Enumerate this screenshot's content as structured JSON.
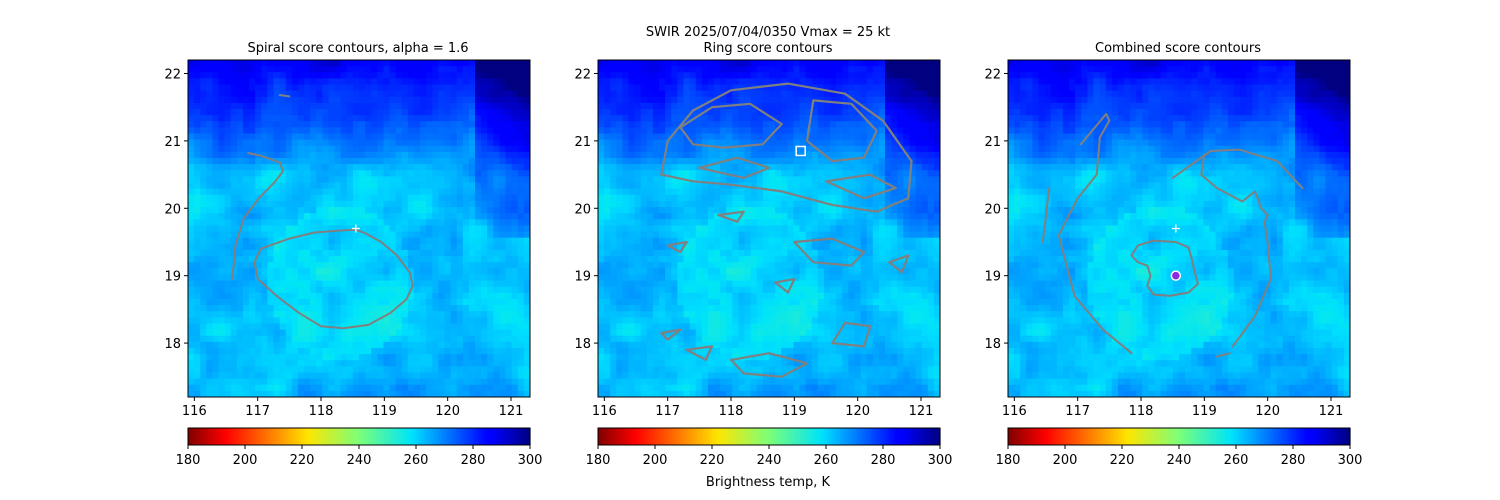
{
  "suptitle": {
    "line1": "SWIR  2025/07/04/0350    Vmax = 25 kt"
  },
  "colorbar_label": "Brightness temp, K",
  "colors": {
    "contour": "#808080",
    "marker": "#ffffff",
    "combined_center": "#8a2be2"
  },
  "chart_data": [
    {
      "type": "heatmap",
      "title": "Spiral score contours, alpha =  1.6",
      "xlim": [
        115.9,
        121.3
      ],
      "ylim": [
        17.2,
        22.2
      ],
      "xticks": [
        "116",
        "117",
        "118",
        "119",
        "120",
        "121"
      ],
      "yticks": [
        "18",
        "19",
        "20",
        "21",
        "22"
      ],
      "colorbar": {
        "min": 180,
        "max": 300,
        "ticks": [
          "180",
          "200",
          "220",
          "240",
          "260",
          "280",
          "300"
        ],
        "colormap": "jet_r"
      },
      "marker": {
        "type": "plus",
        "lon": 118.55,
        "lat": 19.7
      },
      "contours": [
        [
          [
            118.55,
            19.68
          ],
          [
            118.3,
            19.67
          ],
          [
            117.9,
            19.64
          ],
          [
            117.5,
            19.55
          ],
          [
            117.05,
            19.4
          ],
          [
            116.95,
            19.2
          ],
          [
            117.0,
            18.95
          ],
          [
            117.3,
            18.7
          ],
          [
            117.65,
            18.45
          ],
          [
            118.0,
            18.25
          ],
          [
            118.35,
            18.22
          ],
          [
            118.75,
            18.27
          ],
          [
            119.1,
            18.45
          ],
          [
            119.35,
            18.65
          ],
          [
            119.45,
            18.85
          ],
          [
            119.4,
            19.05
          ],
          [
            119.2,
            19.3
          ],
          [
            118.95,
            19.5
          ],
          [
            118.7,
            19.63
          ],
          [
            118.55,
            19.68
          ]
        ],
        [
          [
            116.6,
            18.95
          ],
          [
            116.65,
            19.45
          ],
          [
            116.78,
            19.85
          ],
          [
            117.02,
            20.15
          ],
          [
            117.28,
            20.4
          ],
          [
            117.4,
            20.55
          ],
          [
            117.35,
            20.68
          ],
          [
            117.05,
            20.78
          ],
          [
            116.85,
            20.82
          ]
        ],
        [
          [
            117.35,
            21.68
          ],
          [
            117.5,
            21.66
          ]
        ]
      ]
    },
    {
      "type": "heatmap",
      "title": "Ring score contours",
      "xlim": [
        115.9,
        121.3
      ],
      "ylim": [
        17.2,
        22.2
      ],
      "xticks": [
        "116",
        "117",
        "118",
        "119",
        "120",
        "121"
      ],
      "yticks": [
        "18",
        "19",
        "20",
        "21",
        "22"
      ],
      "colorbar": {
        "min": 180,
        "max": 300,
        "ticks": [
          "180",
          "200",
          "220",
          "240",
          "260",
          "280",
          "300"
        ],
        "colormap": "jet_r"
      },
      "marker": {
        "type": "square",
        "lon": 119.1,
        "lat": 20.85
      },
      "contours": [
        [
          [
            116.9,
            20.5
          ],
          [
            117.0,
            21.0
          ],
          [
            117.4,
            21.45
          ],
          [
            118.0,
            21.75
          ],
          [
            118.9,
            21.85
          ],
          [
            119.8,
            21.7
          ],
          [
            120.4,
            21.3
          ],
          [
            120.85,
            20.7
          ],
          [
            120.8,
            20.15
          ],
          [
            120.3,
            19.95
          ],
          [
            119.6,
            20.05
          ],
          [
            118.8,
            20.25
          ],
          [
            118.0,
            20.35
          ],
          [
            117.4,
            20.4
          ],
          [
            116.9,
            20.5
          ]
        ],
        [
          [
            117.2,
            21.2
          ],
          [
            117.7,
            21.5
          ],
          [
            118.3,
            21.55
          ],
          [
            118.8,
            21.25
          ],
          [
            118.5,
            20.95
          ],
          [
            117.9,
            20.9
          ],
          [
            117.4,
            20.95
          ],
          [
            117.2,
            21.2
          ]
        ],
        [
          [
            119.3,
            21.6
          ],
          [
            119.9,
            21.55
          ],
          [
            120.3,
            21.15
          ],
          [
            120.1,
            20.75
          ],
          [
            119.6,
            20.7
          ],
          [
            119.2,
            21.0
          ],
          [
            119.3,
            21.6
          ]
        ],
        [
          [
            117.5,
            20.6
          ],
          [
            118.1,
            20.75
          ],
          [
            118.6,
            20.6
          ],
          [
            118.2,
            20.45
          ],
          [
            117.5,
            20.6
          ]
        ],
        [
          [
            119.5,
            20.4
          ],
          [
            120.2,
            20.5
          ],
          [
            120.6,
            20.3
          ],
          [
            120.1,
            20.15
          ],
          [
            119.5,
            20.4
          ]
        ],
        [
          [
            119.0,
            19.5
          ],
          [
            119.6,
            19.55
          ],
          [
            120.1,
            19.35
          ],
          [
            119.9,
            19.15
          ],
          [
            119.3,
            19.2
          ],
          [
            119.0,
            19.5
          ]
        ],
        [
          [
            119.6,
            18.0
          ],
          [
            119.8,
            18.3
          ],
          [
            120.2,
            18.25
          ],
          [
            120.1,
            17.95
          ],
          [
            119.6,
            18.0
          ]
        ],
        [
          [
            118.0,
            17.75
          ],
          [
            118.6,
            17.85
          ],
          [
            119.2,
            17.7
          ],
          [
            118.8,
            17.5
          ],
          [
            118.2,
            17.55
          ],
          [
            118.0,
            17.75
          ]
        ],
        [
          [
            117.3,
            17.9
          ],
          [
            117.7,
            17.95
          ],
          [
            117.6,
            17.75
          ],
          [
            117.3,
            17.9
          ]
        ],
        [
          [
            116.9,
            18.15
          ],
          [
            117.2,
            18.2
          ],
          [
            117.0,
            18.05
          ],
          [
            116.9,
            18.15
          ]
        ],
        [
          [
            117.8,
            19.9
          ],
          [
            118.2,
            19.95
          ],
          [
            118.1,
            19.8
          ],
          [
            117.8,
            19.9
          ]
        ],
        [
          [
            117.0,
            19.45
          ],
          [
            117.3,
            19.5
          ],
          [
            117.2,
            19.35
          ],
          [
            117.0,
            19.45
          ]
        ],
        [
          [
            120.5,
            19.2
          ],
          [
            120.8,
            19.3
          ],
          [
            120.7,
            19.05
          ],
          [
            120.5,
            19.2
          ]
        ],
        [
          [
            118.7,
            18.9
          ],
          [
            119.0,
            18.95
          ],
          [
            118.9,
            18.75
          ],
          [
            118.7,
            18.9
          ]
        ]
      ]
    },
    {
      "type": "heatmap",
      "title": "Combined score contours",
      "xlim": [
        115.9,
        121.3
      ],
      "ylim": [
        17.2,
        22.2
      ],
      "xticks": [
        "116",
        "117",
        "118",
        "119",
        "120",
        "121"
      ],
      "yticks": [
        "18",
        "19",
        "20",
        "21",
        "22"
      ],
      "colorbar": {
        "min": 180,
        "max": 300,
        "ticks": [
          "180",
          "200",
          "220",
          "240",
          "260",
          "280",
          "300"
        ],
        "colormap": "jet_r"
      },
      "marker": {
        "type": "plus",
        "lon": 118.55,
        "lat": 19.7
      },
      "center": {
        "lon": 118.55,
        "lat": 19.0
      },
      "contours": [
        [
          [
            118.55,
            19.5
          ],
          [
            118.2,
            19.52
          ],
          [
            117.95,
            19.45
          ],
          [
            117.85,
            19.3
          ],
          [
            117.95,
            19.2
          ],
          [
            118.1,
            19.15
          ],
          [
            118.15,
            19.0
          ],
          [
            118.1,
            18.85
          ],
          [
            118.2,
            18.72
          ],
          [
            118.45,
            18.7
          ],
          [
            118.75,
            18.75
          ],
          [
            118.9,
            18.88
          ],
          [
            118.85,
            19.05
          ],
          [
            118.8,
            19.25
          ],
          [
            118.75,
            19.42
          ],
          [
            118.55,
            19.5
          ]
        ],
        [
          [
            117.05,
            20.95
          ],
          [
            117.45,
            21.4
          ],
          [
            117.5,
            21.3
          ],
          [
            117.35,
            21.05
          ],
          [
            117.3,
            20.5
          ],
          [
            117.0,
            20.15
          ],
          [
            116.7,
            19.6
          ],
          [
            116.95,
            18.7
          ],
          [
            117.4,
            18.2
          ],
          [
            117.85,
            17.85
          ]
        ],
        [
          [
            118.5,
            20.45
          ],
          [
            119.1,
            20.85
          ],
          [
            119.55,
            20.87
          ],
          [
            120.15,
            20.7
          ],
          [
            120.55,
            20.3
          ]
        ],
        [
          [
            119.0,
            20.8
          ],
          [
            118.95,
            20.5
          ],
          [
            119.2,
            20.3
          ],
          [
            119.6,
            20.1
          ],
          [
            119.8,
            20.25
          ],
          [
            119.9,
            20.0
          ],
          [
            120.0,
            19.9
          ],
          [
            119.95,
            19.8
          ],
          [
            120.0,
            19.5
          ],
          [
            120.05,
            18.95
          ],
          [
            119.8,
            18.4
          ],
          [
            119.45,
            17.95
          ]
        ],
        [
          [
            116.55,
            20.3
          ],
          [
            116.45,
            19.5
          ]
        ],
        [
          [
            119.2,
            17.8
          ],
          [
            119.4,
            17.85
          ]
        ]
      ]
    }
  ]
}
